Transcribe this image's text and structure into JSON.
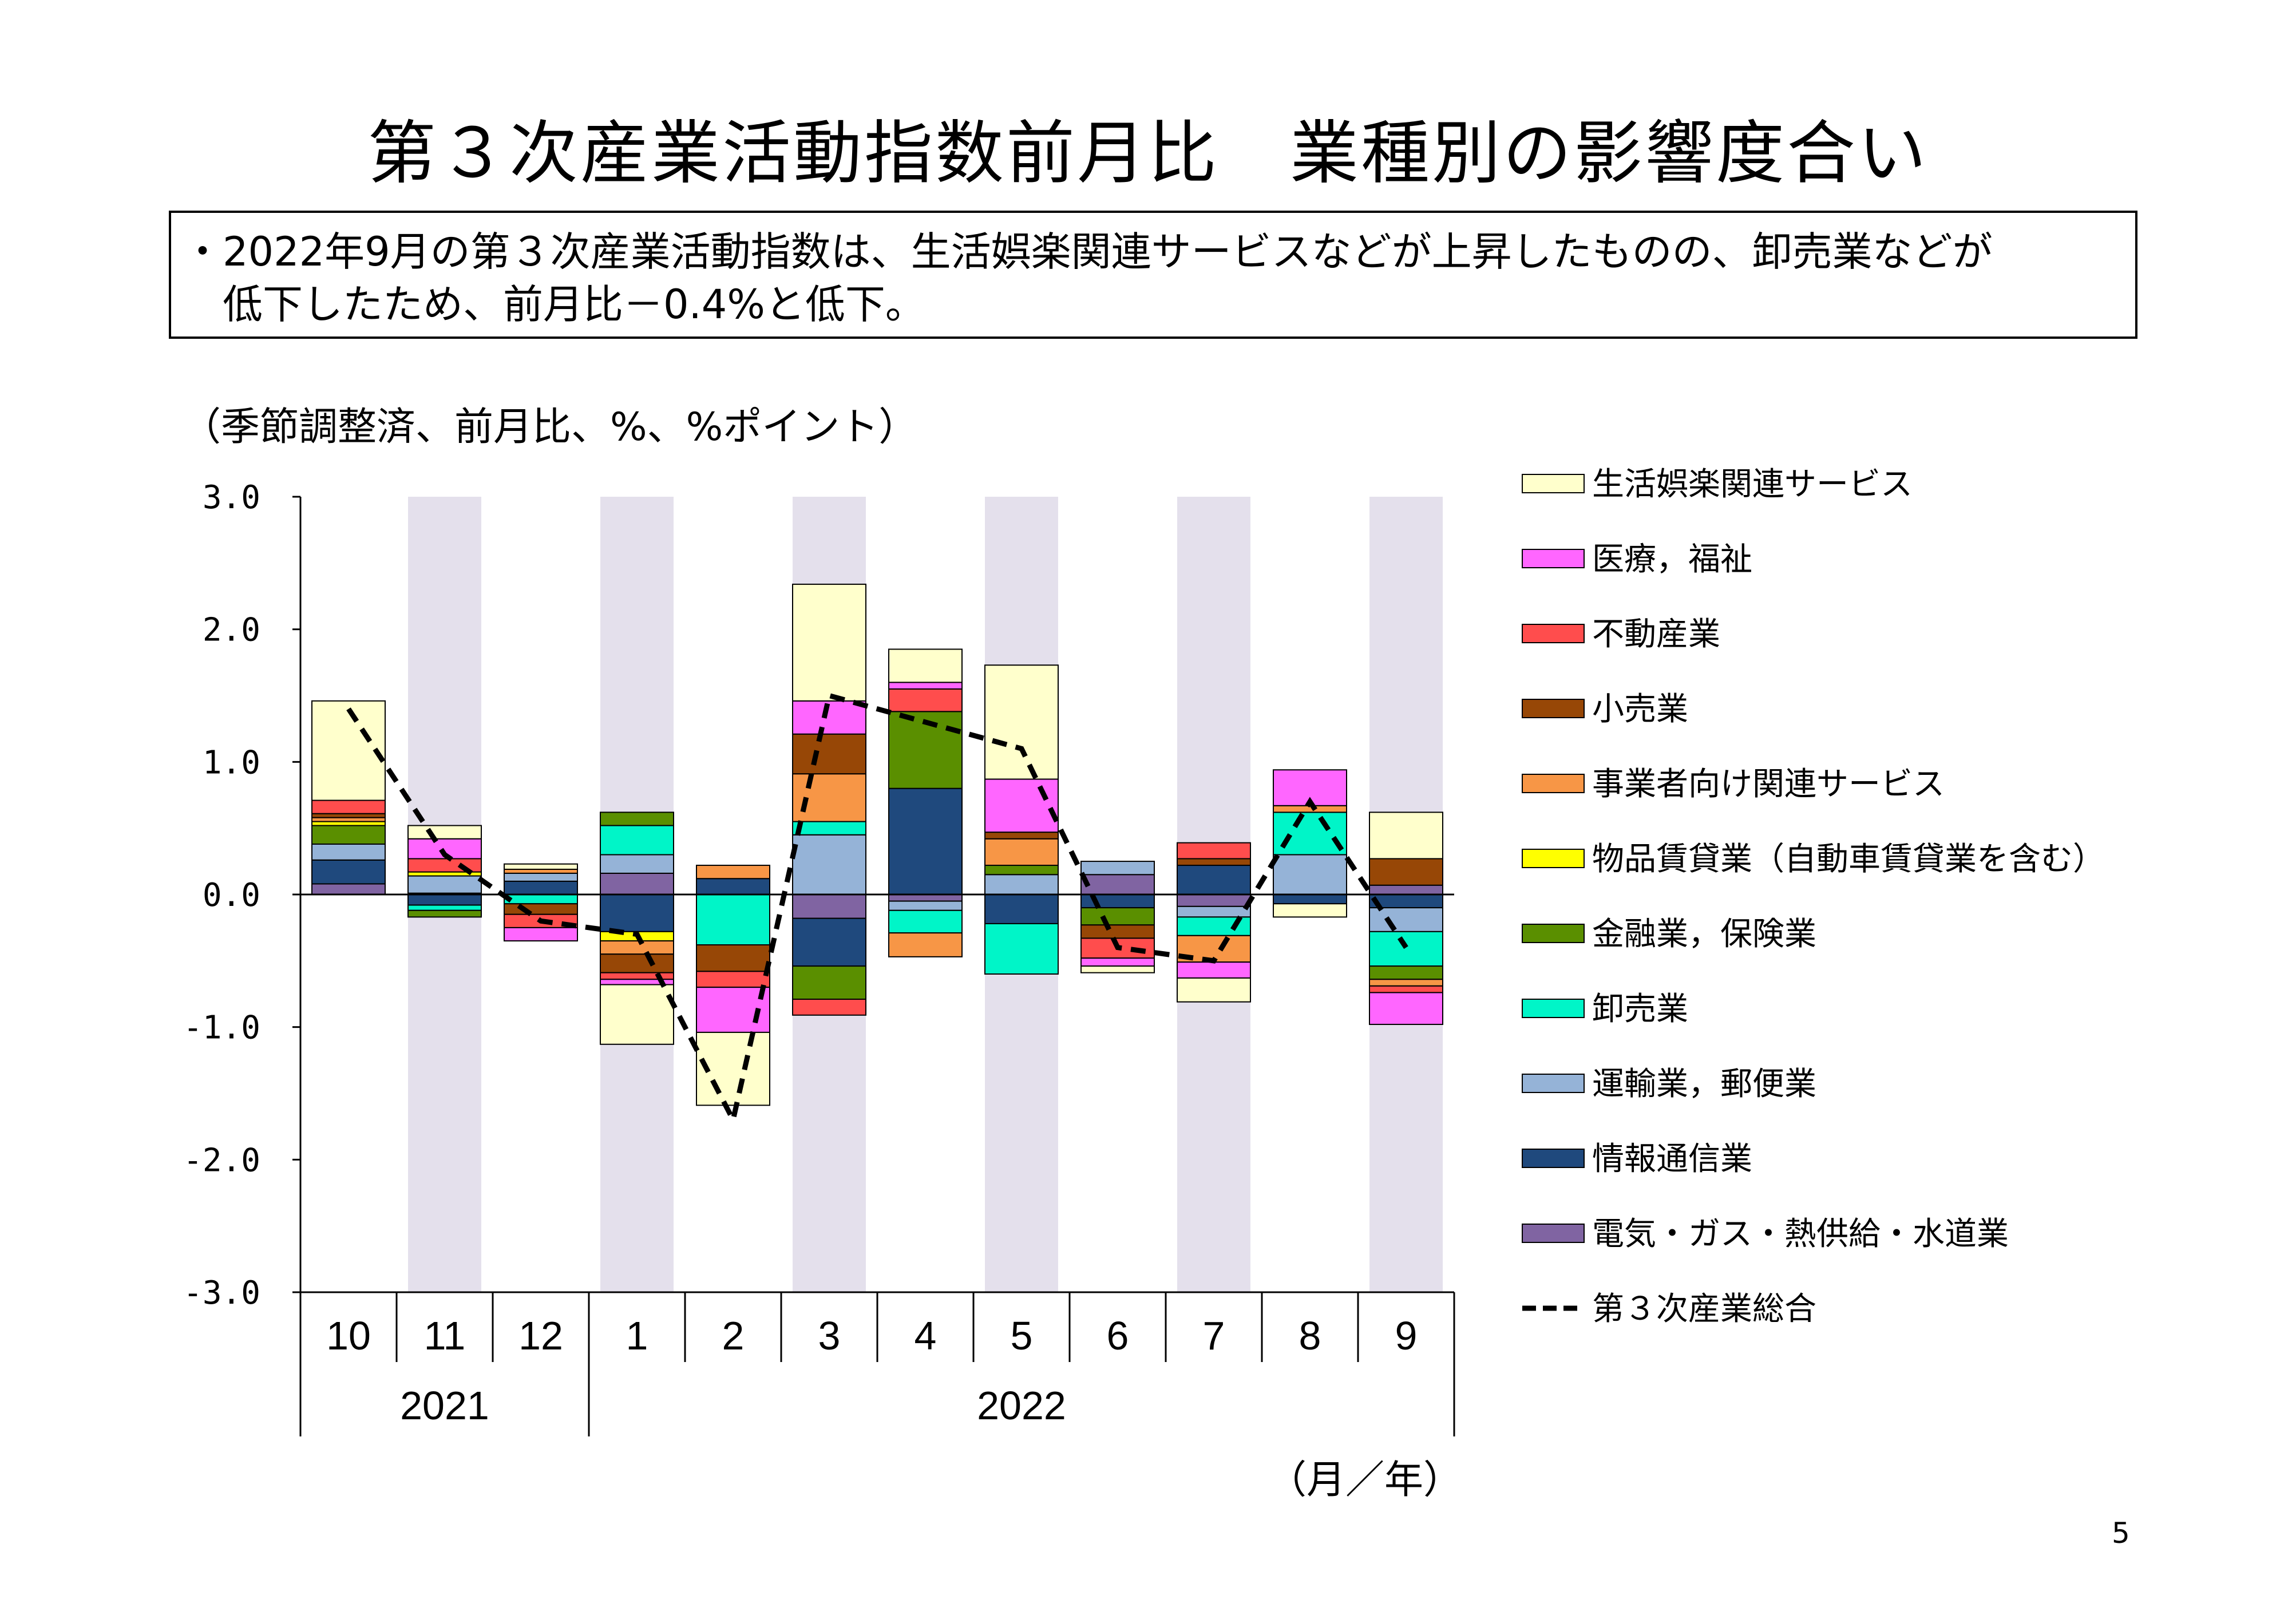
{
  "title": "第３次産業活動指数前月比　業種別の影響度合い",
  "summary": "・2022年9月の第３次産業活動指数は、生活娯楽関連サービスなどが上昇したものの、卸売業などが\n　低下したため、前月比－0.4%と低下。",
  "unit_note": "（季節調整済、前月比、%、%ポイント）",
  "x_unit": "（月／年）",
  "page_number": "5",
  "chart_data": {
    "type": "bar",
    "stacked": true,
    "categories": [
      "10",
      "11",
      "12",
      "1",
      "2",
      "3",
      "4",
      "5",
      "6",
      "7",
      "8",
      "9"
    ],
    "year_groups": [
      {
        "label": "2021",
        "count": 3
      },
      {
        "label": "2022",
        "count": 9
      }
    ],
    "ylim": [
      -3.0,
      3.0
    ],
    "yticks": [
      "3.0",
      "2.0",
      "1.0",
      "0.0",
      "-1.0",
      "-2.0",
      "-3.0"
    ],
    "shaded_categories": [
      1,
      3,
      5,
      7,
      9,
      11
    ],
    "series": [
      {
        "name": "電気・ガス・熱供給・水道業",
        "color": "#8064a2",
        "values": [
          0.08,
          0.01,
          0.0,
          0.16,
          0.0,
          -0.18,
          -0.05,
          0.0,
          0.15,
          -0.09,
          0.0,
          0.07
        ]
      },
      {
        "name": "情報通信業",
        "color": "#1f497d",
        "values": [
          0.18,
          -0.08,
          0.1,
          -0.28,
          0.12,
          -0.36,
          0.8,
          -0.22,
          -0.1,
          0.22,
          -0.07,
          -0.1
        ]
      },
      {
        "name": "運輸業，郵便業",
        "color": "#95b3d7",
        "values": [
          0.12,
          0.13,
          0.06,
          0.14,
          0.0,
          0.45,
          -0.07,
          0.15,
          0.1,
          -0.08,
          0.3,
          -0.18
        ]
      },
      {
        "name": "卸売業",
        "color": "#00f5c8",
        "values": [
          0.0,
          -0.04,
          -0.07,
          0.22,
          -0.38,
          0.1,
          -0.17,
          -0.38,
          0.0,
          -0.14,
          0.32,
          -0.26
        ]
      },
      {
        "name": "金融業，保険業",
        "color": "#5a8f00",
        "values": [
          0.14,
          -0.05,
          0.0,
          0.1,
          0.0,
          -0.25,
          0.58,
          0.07,
          -0.13,
          0.0,
          0.0,
          -0.1
        ]
      },
      {
        "name": "物品賃貸業（自動車賃貸業を含む）",
        "color": "#ffff00",
        "values": [
          0.03,
          0.03,
          0.0,
          -0.07,
          0.0,
          0.0,
          0.0,
          0.0,
          0.0,
          0.0,
          0.0,
          0.0
        ]
      },
      {
        "name": "事業者向け関連サービス",
        "color": "#f79646",
        "values": [
          0.03,
          0.0,
          0.03,
          -0.1,
          0.1,
          0.36,
          -0.18,
          0.2,
          0.0,
          -0.2,
          0.05,
          -0.05
        ]
      },
      {
        "name": "小売業",
        "color": "#974706",
        "values": [
          0.03,
          0.0,
          -0.08,
          -0.14,
          -0.2,
          0.3,
          0.0,
          0.05,
          -0.1,
          0.05,
          0.0,
          0.2
        ]
      },
      {
        "name": "不動産業",
        "color": "#ff4d4d",
        "values": [
          0.1,
          0.1,
          -0.1,
          -0.05,
          -0.12,
          -0.12,
          0.17,
          0.0,
          -0.15,
          0.12,
          0.0,
          -0.05
        ]
      },
      {
        "name": "医療，福祉",
        "color": "#ff66ff",
        "values": [
          0.0,
          0.15,
          -0.1,
          -0.04,
          -0.34,
          0.25,
          0.05,
          0.4,
          -0.06,
          -0.12,
          0.27,
          -0.24
        ]
      },
      {
        "name": "生活娯楽関連サービス",
        "color": "#ffffcc",
        "values": [
          0.75,
          0.1,
          0.04,
          -0.45,
          -0.55,
          0.88,
          0.25,
          0.86,
          -0.05,
          -0.18,
          -0.1,
          0.35
        ]
      }
    ],
    "line_series": {
      "name": "第３次産業総合",
      "color": "#000000",
      "values": [
        1.4,
        0.3,
        -0.2,
        -0.3,
        -1.7,
        1.5,
        1.3,
        1.1,
        -0.4,
        -0.5,
        0.7,
        -0.4
      ]
    }
  }
}
